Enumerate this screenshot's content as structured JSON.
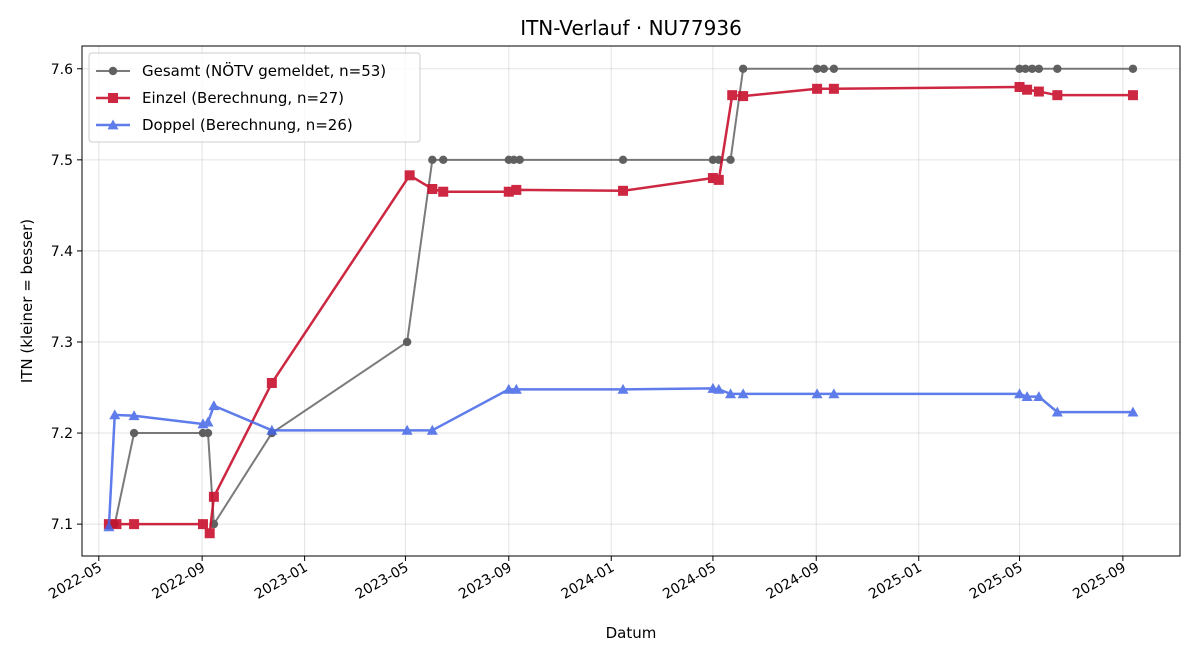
{
  "chart_data": {
    "type": "line",
    "title": "ITN-Verlauf · NU77936",
    "xlabel": "Datum",
    "ylabel": "ITN  (kleiner = besser)",
    "ylim": [
      7.065,
      7.625
    ],
    "xlim": [
      "2022-04-11",
      "2025-11-08"
    ],
    "x_ticks": [
      "2022-05",
      "2022-09",
      "2023-01",
      "2023-05",
      "2023-09",
      "2024-01",
      "2024-05",
      "2024-09",
      "2025-01",
      "2025-05",
      "2025-09"
    ],
    "y_ticks": [
      7.1,
      7.2,
      7.3,
      7.4,
      7.5,
      7.6
    ],
    "grid": true,
    "legend_position": "top-left",
    "series": [
      {
        "name": "Gesamt (NÖTV gemeldet, n=53)",
        "color": "#5a5a5a",
        "marker": "circle",
        "points": [
          [
            "2022-05-16",
            7.1
          ],
          [
            "2022-05-20",
            7.1
          ],
          [
            "2022-06-12",
            7.2
          ],
          [
            "2022-09-02",
            7.2
          ],
          [
            "2022-09-08",
            7.2
          ],
          [
            "2022-09-15",
            7.1
          ],
          [
            "2022-11-23",
            7.2
          ],
          [
            "2023-05-03",
            7.3
          ],
          [
            "2023-06-02",
            7.5
          ],
          [
            "2023-06-15",
            7.5
          ],
          [
            "2023-09-01",
            7.5
          ],
          [
            "2023-09-07",
            7.5
          ],
          [
            "2023-09-14",
            7.5
          ],
          [
            "2024-01-15",
            7.5
          ],
          [
            "2024-05-01",
            7.5
          ],
          [
            "2024-05-08",
            7.5
          ],
          [
            "2024-05-22",
            7.5
          ],
          [
            "2024-06-06",
            7.6
          ],
          [
            "2024-09-02",
            7.6
          ],
          [
            "2024-09-10",
            7.6
          ],
          [
            "2024-09-22",
            7.6
          ],
          [
            "2025-05-01",
            7.6
          ],
          [
            "2025-05-08",
            7.6
          ],
          [
            "2025-05-16",
            7.6
          ],
          [
            "2025-05-24",
            7.6
          ],
          [
            "2025-06-15",
            7.6
          ],
          [
            "2025-09-13",
            7.6
          ]
        ]
      },
      {
        "name": "Einzel (Berechnung, n=27)",
        "color": "#c8102e",
        "marker": "square",
        "points": [
          [
            "2022-05-13",
            7.1
          ],
          [
            "2022-05-22",
            7.1
          ],
          [
            "2022-06-12",
            7.1
          ],
          [
            "2022-09-02",
            7.1
          ],
          [
            "2022-09-10",
            7.09
          ],
          [
            "2022-09-15",
            7.13
          ],
          [
            "2022-11-23",
            7.255
          ],
          [
            "2023-05-06",
            7.483
          ],
          [
            "2023-06-02",
            7.468
          ],
          [
            "2023-06-15",
            7.465
          ],
          [
            "2023-09-01",
            7.465
          ],
          [
            "2023-09-10",
            7.467
          ],
          [
            "2024-01-15",
            7.466
          ],
          [
            "2024-05-01",
            7.48
          ],
          [
            "2024-05-08",
            7.478
          ],
          [
            "2024-05-24",
            7.571
          ],
          [
            "2024-06-06",
            7.57
          ],
          [
            "2024-09-02",
            7.578
          ],
          [
            "2024-09-22",
            7.578
          ],
          [
            "2025-05-01",
            7.58
          ],
          [
            "2025-05-10",
            7.577
          ],
          [
            "2025-05-24",
            7.575
          ],
          [
            "2025-06-15",
            7.571
          ],
          [
            "2025-09-13",
            7.571
          ]
        ]
      },
      {
        "name": "Doppel (Berechnung, n=26)",
        "color": "#4466e8",
        "marker": "triangle",
        "points": [
          [
            "2022-05-13",
            7.097
          ],
          [
            "2022-05-20",
            7.22
          ],
          [
            "2022-06-12",
            7.219
          ],
          [
            "2022-09-02",
            7.21
          ],
          [
            "2022-09-08",
            7.212
          ],
          [
            "2022-09-15",
            7.23
          ],
          [
            "2022-11-23",
            7.203
          ],
          [
            "2023-05-03",
            7.203
          ],
          [
            "2023-06-02",
            7.203
          ],
          [
            "2023-09-01",
            7.248
          ],
          [
            "2023-09-10",
            7.248
          ],
          [
            "2024-01-15",
            7.248
          ],
          [
            "2024-05-01",
            7.249
          ],
          [
            "2024-05-08",
            7.248
          ],
          [
            "2024-05-22",
            7.243
          ],
          [
            "2024-06-06",
            7.243
          ],
          [
            "2024-09-02",
            7.243
          ],
          [
            "2024-09-22",
            7.243
          ],
          [
            "2025-05-01",
            7.243
          ],
          [
            "2025-05-10",
            7.24
          ],
          [
            "2025-05-24",
            7.24
          ],
          [
            "2025-06-15",
            7.223
          ],
          [
            "2025-09-13",
            7.223
          ]
        ]
      }
    ]
  }
}
